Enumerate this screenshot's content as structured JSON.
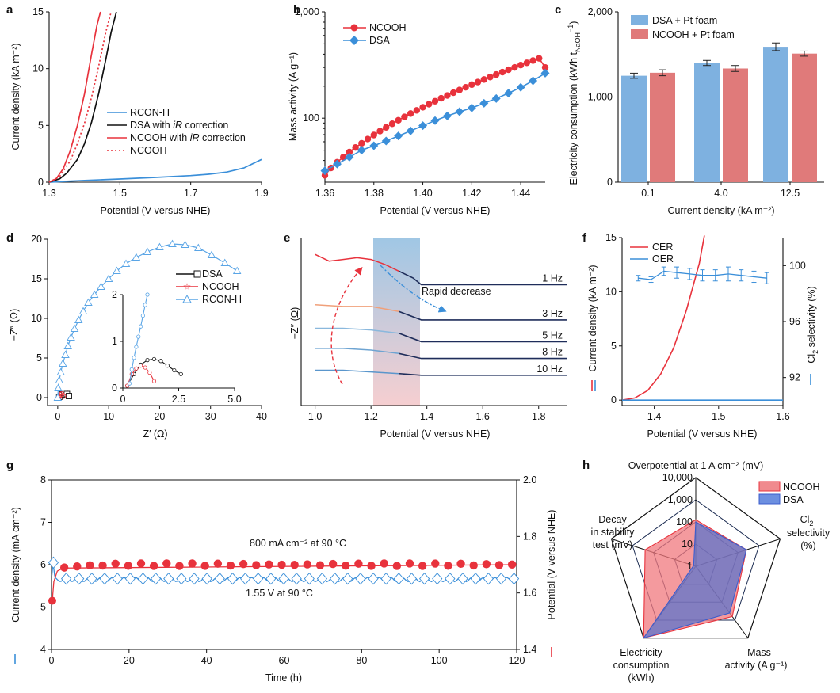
{
  "colors": {
    "red": "#e8323c",
    "blue": "#3b8fd9",
    "black": "#111111",
    "redBar": "#e07a7a",
    "blueBar": "#7eb1e0",
    "lightblue": "#5aa5e6"
  },
  "panels": [
    {
      "id": "a",
      "letter": "a",
      "chart_data": {
        "type": "line",
        "xlabel": "Potential (V versus NHE)",
        "ylabel": "Current density (kA m⁻²)",
        "xlim": [
          1.3,
          1.9
        ],
        "ylim": [
          0,
          15
        ],
        "xticks": [
          "1.3",
          "1.5",
          "1.7",
          "1.9"
        ],
        "yticks": [
          "0",
          "5",
          "10",
          "15"
        ],
        "series": [
          {
            "name": "RCON-H",
            "color": "#3b8fd9",
            "style": "solid",
            "x": [
              1.3,
              1.35,
              1.4,
              1.5,
              1.6,
              1.7,
              1.75,
              1.8,
              1.85,
              1.9
            ],
            "y": [
              0,
              0.08,
              0.15,
              0.28,
              0.42,
              0.58,
              0.7,
              0.88,
              1.25,
              2.0
            ]
          },
          {
            "name": "DSA with iR correction",
            "color": "#111111",
            "style": "solid",
            "x": [
              1.3,
              1.33,
              1.35,
              1.38,
              1.4,
              1.42,
              1.44,
              1.46,
              1.475,
              1.49
            ],
            "y": [
              0,
              0.3,
              0.8,
              2.0,
              3.4,
              5.3,
              7.8,
              10.8,
              13.2,
              15
            ]
          },
          {
            "name": "NCOOH with iR correction",
            "color": "#e8323c",
            "style": "solid",
            "x": [
              1.3,
              1.32,
              1.34,
              1.36,
              1.38,
              1.4,
              1.42,
              1.435,
              1.445
            ],
            "y": [
              0,
              0.3,
              1.2,
              2.8,
              5.0,
              7.8,
              11.3,
              13.8,
              15
            ]
          },
          {
            "name": "NCOOH",
            "color": "#e8323c",
            "style": "dotted",
            "x": [
              1.3,
              1.33,
              1.36,
              1.38,
              1.4,
              1.42,
              1.44,
              1.46,
              1.475
            ],
            "y": [
              0,
              0.5,
              1.9,
              3.4,
              5.2,
              7.5,
              10.2,
              13.2,
              15
            ]
          }
        ]
      }
    },
    {
      "id": "b",
      "letter": "b",
      "chart_data": {
        "type": "line",
        "scale": "log-y",
        "xlabel": "Potential (V versus NHE)",
        "ylabel": "Mass activity (A g⁻¹)",
        "xlim": [
          1.36,
          1.45
        ],
        "ylim": [
          25,
          1000
        ],
        "xticks": [
          "1.36",
          "1.38",
          "1.40",
          "1.42",
          "1.44"
        ],
        "yticks": [
          "100",
          "1,000"
        ],
        "series": [
          {
            "name": "NCOOH",
            "color": "#e8323c",
            "marker": "circle",
            "x": [
              1.36,
              1.3625,
              1.365,
              1.3675,
              1.37,
              1.3725,
              1.375,
              1.3775,
              1.38,
              1.3825,
              1.385,
              1.3875,
              1.39,
              1.3925,
              1.395,
              1.3975,
              1.4,
              1.4025,
              1.405,
              1.4075,
              1.41,
              1.4125,
              1.415,
              1.4175,
              1.42,
              1.4225,
              1.425,
              1.4275,
              1.43,
              1.4325,
              1.435,
              1.4375,
              1.44,
              1.4425,
              1.445,
              1.4475,
              1.45
            ],
            "y": [
              29,
              34,
              38.5,
              43,
              48,
              53,
              58,
              63.6,
              69.4,
              75.5,
              81.9,
              88.6,
              95.6,
              102.9,
              110.5,
              118.4,
              126.7,
              135.4,
              144.4,
              153.8,
              163.5,
              173.7,
              184.3,
              195.3,
              206.8,
              218.7,
              231.1,
              243.9,
              257.3,
              271.1,
              285.5,
              300.3,
              315.8,
              331.7,
              348.3,
              365.4,
              300
            ]
          },
          {
            "name": "DSA",
            "color": "#3b8fd9",
            "marker": "diamond",
            "x": [
              1.36,
              1.365,
              1.37,
              1.375,
              1.38,
              1.385,
              1.39,
              1.395,
              1.4,
              1.405,
              1.41,
              1.415,
              1.42,
              1.425,
              1.43,
              1.435,
              1.44,
              1.445,
              1.45
            ],
            "y": [
              32,
              37,
              43,
              50,
              55,
              61,
              68,
              76,
              85,
              95,
              105,
              115,
              125,
              138,
              153,
              172,
              195,
              225,
              265
            ]
          }
        ]
      }
    },
    {
      "id": "c",
      "letter": "c",
      "chart_data": {
        "type": "bar",
        "xlabel": "Current density (kA m⁻²)",
        "ylabel": "Electricity consumption (kWh t",
        "ylabel_sub": "NaOH",
        "ylabel_sup": "−1",
        "ylim": [
          0,
          2000
        ],
        "yticks": [
          "0",
          "1,000",
          "2,000"
        ],
        "categories": [
          "0.1",
          "4.0",
          "12.5"
        ],
        "series": [
          {
            "name": "DSA + Pt foam",
            "color": "#7eb1e0",
            "values": [
              1250,
              1400,
              1590
            ],
            "errors": [
              30,
              30,
              45
            ]
          },
          {
            "name": "NCOOH + Pt foam",
            "color": "#e07a7a",
            "values": [
              1285,
              1335,
              1510
            ],
            "errors": [
              35,
              35,
              30
            ]
          }
        ]
      }
    },
    {
      "id": "d",
      "letter": "d",
      "chart_data": {
        "type": "scatter",
        "xlabel": "Z′ (Ω)",
        "ylabel": "−Z″ (Ω)",
        "xlim": [
          -2,
          40
        ],
        "ylim": [
          -1,
          20
        ],
        "xticks": [
          "0",
          "10",
          "20",
          "30",
          "40"
        ],
        "yticks": [
          "0",
          "5",
          "10",
          "15",
          "20"
        ],
        "series": [
          {
            "name": "DSA",
            "color": "#111111",
            "marker": "square",
            "x": [
              0.3,
              0.8,
              1.3,
              1.8,
              2.2
            ],
            "y": [
              0.1,
              0.4,
              0.6,
              0.45,
              0.2
            ]
          },
          {
            "name": "NCOOH",
            "color": "#e8323c",
            "marker": "star",
            "x": [
              0.2,
              0.5,
              0.8,
              1.1
            ],
            "y": [
              0.05,
              0.35,
              0.45,
              0.2
            ]
          },
          {
            "name": "RCON-H",
            "color": "#5aa5e6",
            "marker": "triangle",
            "x": [
              0,
              0.1,
              0.3,
              0.6,
              1.0,
              1.5,
              2.0,
              2.6,
              3.3,
              4.1,
              5.0,
              6.0,
              7.2,
              8.5,
              10,
              11.6,
              13.4,
              15.4,
              17.6,
              20,
              22.5,
              25,
              27.6,
              30.2,
              32.8,
              35.2
            ],
            "y": [
              0,
              1.2,
              2.2,
              3.2,
              4.3,
              5.4,
              6.5,
              7.6,
              8.7,
              9.8,
              10.9,
              12.0,
              13.0,
              14.0,
              15.0,
              16.0,
              16.9,
              17.7,
              18.4,
              19.0,
              19.4,
              19.3,
              18.9,
              18.0,
              17.0,
              16.0
            ]
          }
        ],
        "inset": {
          "xlim": [
            0,
            5
          ],
          "ylim": [
            0,
            2
          ],
          "xticks": [
            "0",
            "2.5",
            "5.0"
          ],
          "yticks": [
            "0",
            "1",
            "2"
          ],
          "series": [
            {
              "name": "DSA",
              "color": "#111111",
              "x": [
                0.2,
                0.5,
                0.8,
                1.1,
                1.4,
                1.7,
                2.0,
                2.3,
                2.6
              ],
              "y": [
                0.05,
                0.3,
                0.5,
                0.6,
                0.62,
                0.58,
                0.48,
                0.38,
                0.3
              ]
            },
            {
              "name": "NCOOH",
              "color": "#e8323c",
              "x": [
                0.2,
                0.4,
                0.6,
                0.8,
                1.0,
                1.2,
                1.4
              ],
              "y": [
                0.05,
                0.3,
                0.42,
                0.48,
                0.44,
                0.33,
                0.15
              ]
            },
            {
              "name": "RCON-H",
              "color": "#5aa5e6",
              "x": [
                0.3,
                0.4,
                0.5,
                0.6,
                0.7,
                0.8,
                0.9,
                1.0,
                1.1
              ],
              "y": [
                0.1,
                0.4,
                0.65,
                0.88,
                1.1,
                1.32,
                1.55,
                1.78,
                2.0
              ]
            }
          ]
        }
      }
    },
    {
      "id": "e",
      "letter": "e",
      "chart_data": {
        "type": "line",
        "xlabel": "Potential (V versus NHE)",
        "ylabel": "−Z″ (Ω)",
        "xlim": [
          0.95,
          1.9
        ],
        "xticks": [
          "1.0",
          "1.2",
          "1.4",
          "1.6",
          "1.8"
        ],
        "shaded_region": [
          1.22,
          1.38
        ],
        "annotation": "Rapid decrease",
        "series": [
          {
            "name": "1 Hz",
            "baseline": 0.72,
            "x": [
              1.0,
              1.05,
              1.1,
              1.15,
              1.2,
              1.25,
              1.3,
              1.35,
              1.38,
              1.9
            ],
            "y": [
              0.9,
              0.86,
              0.87,
              0.88,
              0.87,
              0.84,
              0.8,
              0.76,
              0.72,
              0.72
            ]
          },
          {
            "name": "3 Hz",
            "baseline": 0.51,
            "x": [
              1.0,
              1.1,
              1.2,
              1.3,
              1.38,
              1.9
            ],
            "y": [
              0.6,
              0.59,
              0.59,
              0.56,
              0.51,
              0.51
            ]
          },
          {
            "name": "5 Hz",
            "baseline": 0.38,
            "x": [
              1.0,
              1.1,
              1.2,
              1.3,
              1.38,
              1.9
            ],
            "y": [
              0.46,
              0.46,
              0.45,
              0.43,
              0.38,
              0.38
            ]
          },
          {
            "name": "8 Hz",
            "baseline": 0.28,
            "x": [
              1.0,
              1.1,
              1.2,
              1.3,
              1.38,
              1.9
            ],
            "y": [
              0.34,
              0.34,
              0.33,
              0.31,
              0.28,
              0.28
            ]
          },
          {
            "name": "10 Hz",
            "baseline": 0.18,
            "x": [
              1.0,
              1.1,
              1.2,
              1.3,
              1.38,
              1.9
            ],
            "y": [
              0.21,
              0.21,
              0.2,
              0.19,
              0.18,
              0.18
            ]
          }
        ]
      }
    },
    {
      "id": "f",
      "letter": "f",
      "chart_data": {
        "type": "line",
        "xlabel": "Potential (V versus NHE)",
        "ylabel": "Current density (kA m⁻²)",
        "y2label": "Cl",
        "y2label_sub": "2",
        "y2label_rest": " selectivity (%)",
        "xlim": [
          1.35,
          1.6
        ],
        "ylim": [
          -0.5,
          15
        ],
        "y2lim": [
          90,
          102
        ],
        "xticks": [
          "1.4",
          "1.5",
          "1.6"
        ],
        "yticks": [
          "0",
          "5",
          "10",
          "15"
        ],
        "y2ticks": [
          "92",
          "96",
          "100"
        ],
        "series": [
          {
            "name": "CER",
            "color": "#e8323c",
            "x": [
              1.35,
              1.37,
              1.39,
              1.41,
              1.43,
              1.45,
              1.47,
              1.49
            ],
            "y": [
              0,
              0.2,
              0.9,
              2.4,
              4.8,
              8.3,
              12.6,
              17
            ]
          },
          {
            "name": "OER",
            "color": "#3b8fd9",
            "x": [
              1.35,
              1.6
            ],
            "y": [
              0,
              0
            ]
          }
        ],
        "selectivity": {
          "color": "#3b8fd9",
          "x": [
            1.375,
            1.395,
            1.415,
            1.435,
            1.455,
            1.475,
            1.495,
            1.515,
            1.535,
            1.555,
            1.575
          ],
          "y": [
            99.1,
            99.0,
            99.6,
            99.5,
            99.4,
            99.3,
            99.3,
            99.4,
            99.3,
            99.2,
            99.1
          ],
          "err": [
            0.2,
            0.2,
            0.3,
            0.4,
            0.4,
            0.4,
            0.4,
            0.5,
            0.4,
            0.4,
            0.4
          ]
        }
      }
    },
    {
      "id": "g",
      "letter": "g",
      "chart_data": {
        "type": "line",
        "xlabel": "Time (h)",
        "ylabel": "Current density (mA cm⁻²)",
        "y2label": "Potential (V versus NHE)",
        "xlim": [
          0,
          120
        ],
        "ylim": [
          4,
          8
        ],
        "y2lim": [
          1.4,
          2.0
        ],
        "xticks": [
          "0",
          "20",
          "40",
          "60",
          "80",
          "100",
          "120"
        ],
        "yticks": [
          "4",
          "5",
          "6",
          "7",
          "8"
        ],
        "y2ticks": [
          "1.4",
          "1.6",
          "1.8",
          "2.0"
        ],
        "annotations": [
          "800 mA cm⁻² at 90 °C",
          "1.55 V at 90 °C"
        ],
        "series": [
          {
            "name": "Potential",
            "color": "#e8323c",
            "marker": "circle",
            "start": [
              0.2,
              5.15
            ],
            "level": 6.0
          },
          {
            "name": "Current density",
            "color": "#3b8fd9",
            "marker": "diamond",
            "start": [
              0.2,
              5.75
            ],
            "level": 5.65
          }
        ]
      }
    },
    {
      "id": "h",
      "letter": "h",
      "chart_data": {
        "type": "radar",
        "axes": [
          "Overpotential at 1 A cm⁻² (mV)",
          "Cl2 selectivity (%)",
          "Mass activity (A g⁻¹)",
          "Electricity consumption (kWh)",
          "Decay in stability test (mV)"
        ],
        "ring_labels": [
          "1",
          "10",
          "100",
          "1,000",
          "10,000"
        ],
        "series": [
          {
            "name": "NCOOH",
            "color": "#e8323c",
            "values": [
              2.1,
              2.4,
              2.8,
              4.0,
              2.4
            ]
          },
          {
            "name": "DSA",
            "color": "#3b5ccc",
            "values": [
              2.0,
              2.4,
              2.6,
              4.0,
              0.1
            ]
          }
        ]
      }
    }
  ],
  "labels": {
    "a_legend": [
      "RCON-H",
      "DSA with ",
      "iR",
      " correction",
      "NCOOH with ",
      "NCOOH"
    ],
    "b_legend": [
      "NCOOH",
      "DSA"
    ],
    "c_legend": [
      "DSA + Pt foam",
      "NCOOH + Pt foam"
    ],
    "d_legend": [
      "DSA",
      "NCOOH",
      "RCON-H"
    ],
    "e_hz": [
      "1 Hz",
      "3 Hz",
      "5 Hz",
      "8 Hz",
      "10 Hz"
    ],
    "e_anno": "Rapid decrease",
    "f_legend": [
      "CER",
      "OER"
    ],
    "g_anno1": "800 mA cm⁻² at 90 °C",
    "g_anno2": "1.55 V at 90 °C",
    "h_axis_top": "Overpotential at 1 A cm⁻² (mV)",
    "h_axis_right_1": "Cl",
    "h_axis_right_2": "2",
    "h_axis_right_3": "selectivity",
    "h_axis_right_4": "(%)",
    "h_axis_br_1": "Mass",
    "h_axis_br_2": "activity (A g⁻¹)",
    "h_axis_bl_1": "Electricity",
    "h_axis_bl_2": "consumption",
    "h_axis_bl_3": "(kWh)",
    "h_axis_l_1": "Decay",
    "h_axis_l_2": "in stability",
    "h_axis_l_3": "test (mV)",
    "h_legend": [
      "NCOOH",
      "DSA"
    ]
  }
}
